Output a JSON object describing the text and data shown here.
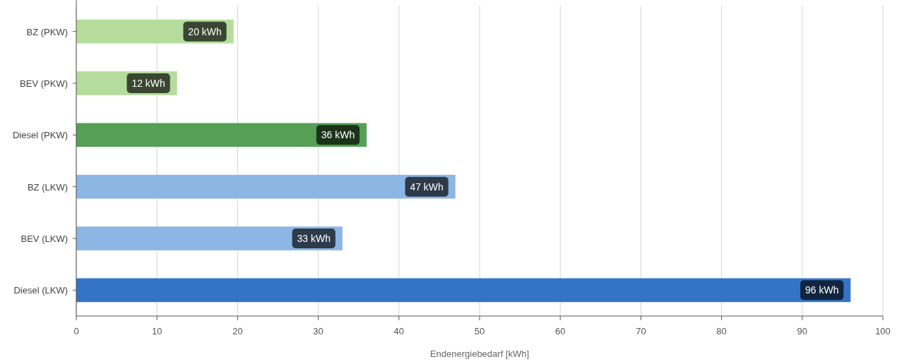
{
  "chart_data": {
    "type": "bar",
    "orientation": "horizontal",
    "xlabel": "Endenergiebedarf [kWh]",
    "categories": [
      "BZ (PKW)",
      "BEV (PKW)",
      "Diesel (PKW)",
      "BZ (LKW)",
      "BEV (LKW)",
      "Diesel (LKW)"
    ],
    "values": [
      19.5,
      12.5,
      36,
      47,
      33,
      96
    ],
    "value_labels": [
      "20 kWh",
      "12 kWh",
      "36 kWh",
      "47 kWh",
      "33 kWh",
      "96 kWh"
    ],
    "colors": [
      "#b5dc9c",
      "#b5dc9c",
      "#55a055",
      "#8cb6e3",
      "#8cb6e3",
      "#3474c6"
    ],
    "xlim": [
      0,
      100
    ],
    "xticks": [
      0,
      10,
      20,
      30,
      40,
      50,
      60,
      70,
      80,
      90,
      100
    ],
    "grid": "x"
  }
}
